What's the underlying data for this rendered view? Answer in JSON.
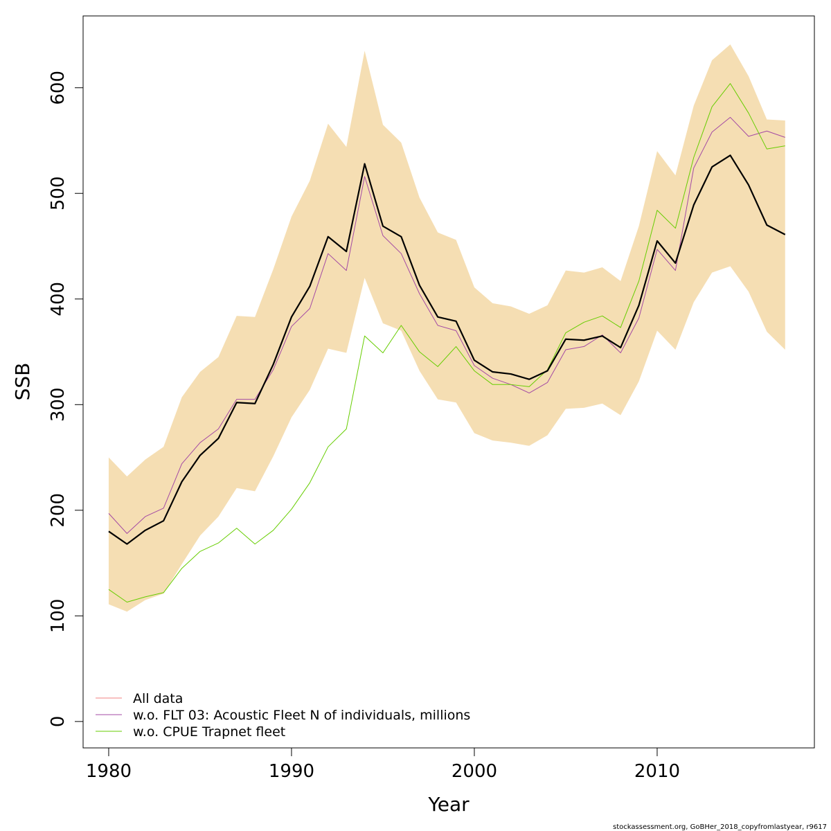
{
  "chart_data": {
    "type": "line",
    "xlabel": "Year",
    "ylabel": "SSB",
    "xlim": [
      1978.6,
      2018.6
    ],
    "ylim": [
      -25,
      668
    ],
    "x_ticks": [
      1980,
      1990,
      2000,
      2010
    ],
    "y_ticks": [
      0,
      100,
      200,
      300,
      400,
      500,
      600
    ],
    "x_tick_labels": [
      "1980",
      "1990",
      "2000",
      "2010"
    ],
    "y_tick_labels": [
      "0",
      "100",
      "200",
      "300",
      "400",
      "500",
      "600"
    ],
    "legend_position": "bottom-left",
    "x": [
      1980,
      1981,
      1982,
      1983,
      1984,
      1985,
      1986,
      1987,
      1988,
      1989,
      1990,
      1991,
      1992,
      1993,
      1994,
      1995,
      1996,
      1997,
      1998,
      1999,
      2000,
      2001,
      2002,
      2003,
      2004,
      2005,
      2006,
      2007,
      2008,
      2009,
      2010,
      2011,
      2012,
      2013,
      2014,
      2015,
      2016,
      2017
    ],
    "band": {
      "color": "#f5deb3",
      "upper": [
        250,
        232,
        248,
        260,
        307,
        331,
        345,
        384,
        383,
        428,
        478,
        512,
        566,
        544,
        635,
        565,
        548,
        496,
        463,
        456,
        411,
        396,
        393,
        386,
        394,
        427,
        425,
        430,
        417,
        469,
        540,
        517,
        583,
        626,
        641,
        611,
        570,
        569
      ],
      "lower": [
        111,
        104,
        115,
        121,
        149,
        176,
        194,
        221,
        218,
        251,
        288,
        314,
        353,
        349,
        420,
        377,
        370,
        332,
        305,
        302,
        273,
        266,
        264,
        261,
        271,
        296,
        297,
        301,
        290,
        322,
        370,
        352,
        397,
        425,
        431,
        407,
        369,
        352
      ]
    },
    "series": [
      {
        "name": "w.o. FLT 03: Acoustic Fleet   N of individuals, millions",
        "color": "#a349a4",
        "width": 1,
        "values": [
          197,
          178,
          194,
          202,
          244,
          264,
          277,
          305,
          305,
          333,
          374,
          391,
          443,
          427,
          516,
          460,
          443,
          405,
          375,
          370,
          337,
          325,
          319,
          311,
          321,
          352,
          355,
          366,
          349,
          382,
          447,
          427,
          524,
          558,
          572,
          554,
          559,
          553
        ]
      },
      {
        "name": "w.o. CPUE Trapnet fleet",
        "color": "#66cd00",
        "width": 1,
        "values": [
          125,
          113,
          118,
          122,
          145,
          161,
          169,
          183,
          168,
          181,
          201,
          226,
          260,
          277,
          365,
          349,
          375,
          350,
          336,
          355,
          332,
          319,
          319,
          317,
          333,
          368,
          378,
          384,
          373,
          417,
          484,
          467,
          534,
          582,
          604,
          576,
          542,
          545
        ]
      },
      {
        "name": "",
        "color": "#000000",
        "width": 2.2,
        "values": [
          180,
          168,
          181,
          190,
          227,
          252,
          268,
          302,
          301,
          338,
          383,
          412,
          459,
          445,
          528,
          469,
          459,
          413,
          383,
          379,
          342,
          331,
          329,
          324,
          332,
          362,
          361,
          365,
          354,
          394,
          455,
          434,
          489,
          525,
          536,
          508,
          470,
          461
        ]
      }
    ],
    "legend": [
      {
        "label": "All data",
        "color": "#f08080"
      },
      {
        "label": "w.o. FLT 03: Acoustic Fleet   N of individuals, millions",
        "color": "#a349a4"
      },
      {
        "label": "w.o. CPUE Trapnet fleet",
        "color": "#66cd00"
      }
    ]
  },
  "footer": "stockassessment.org, GoBHer_2018_copyfromlastyear, r9617"
}
